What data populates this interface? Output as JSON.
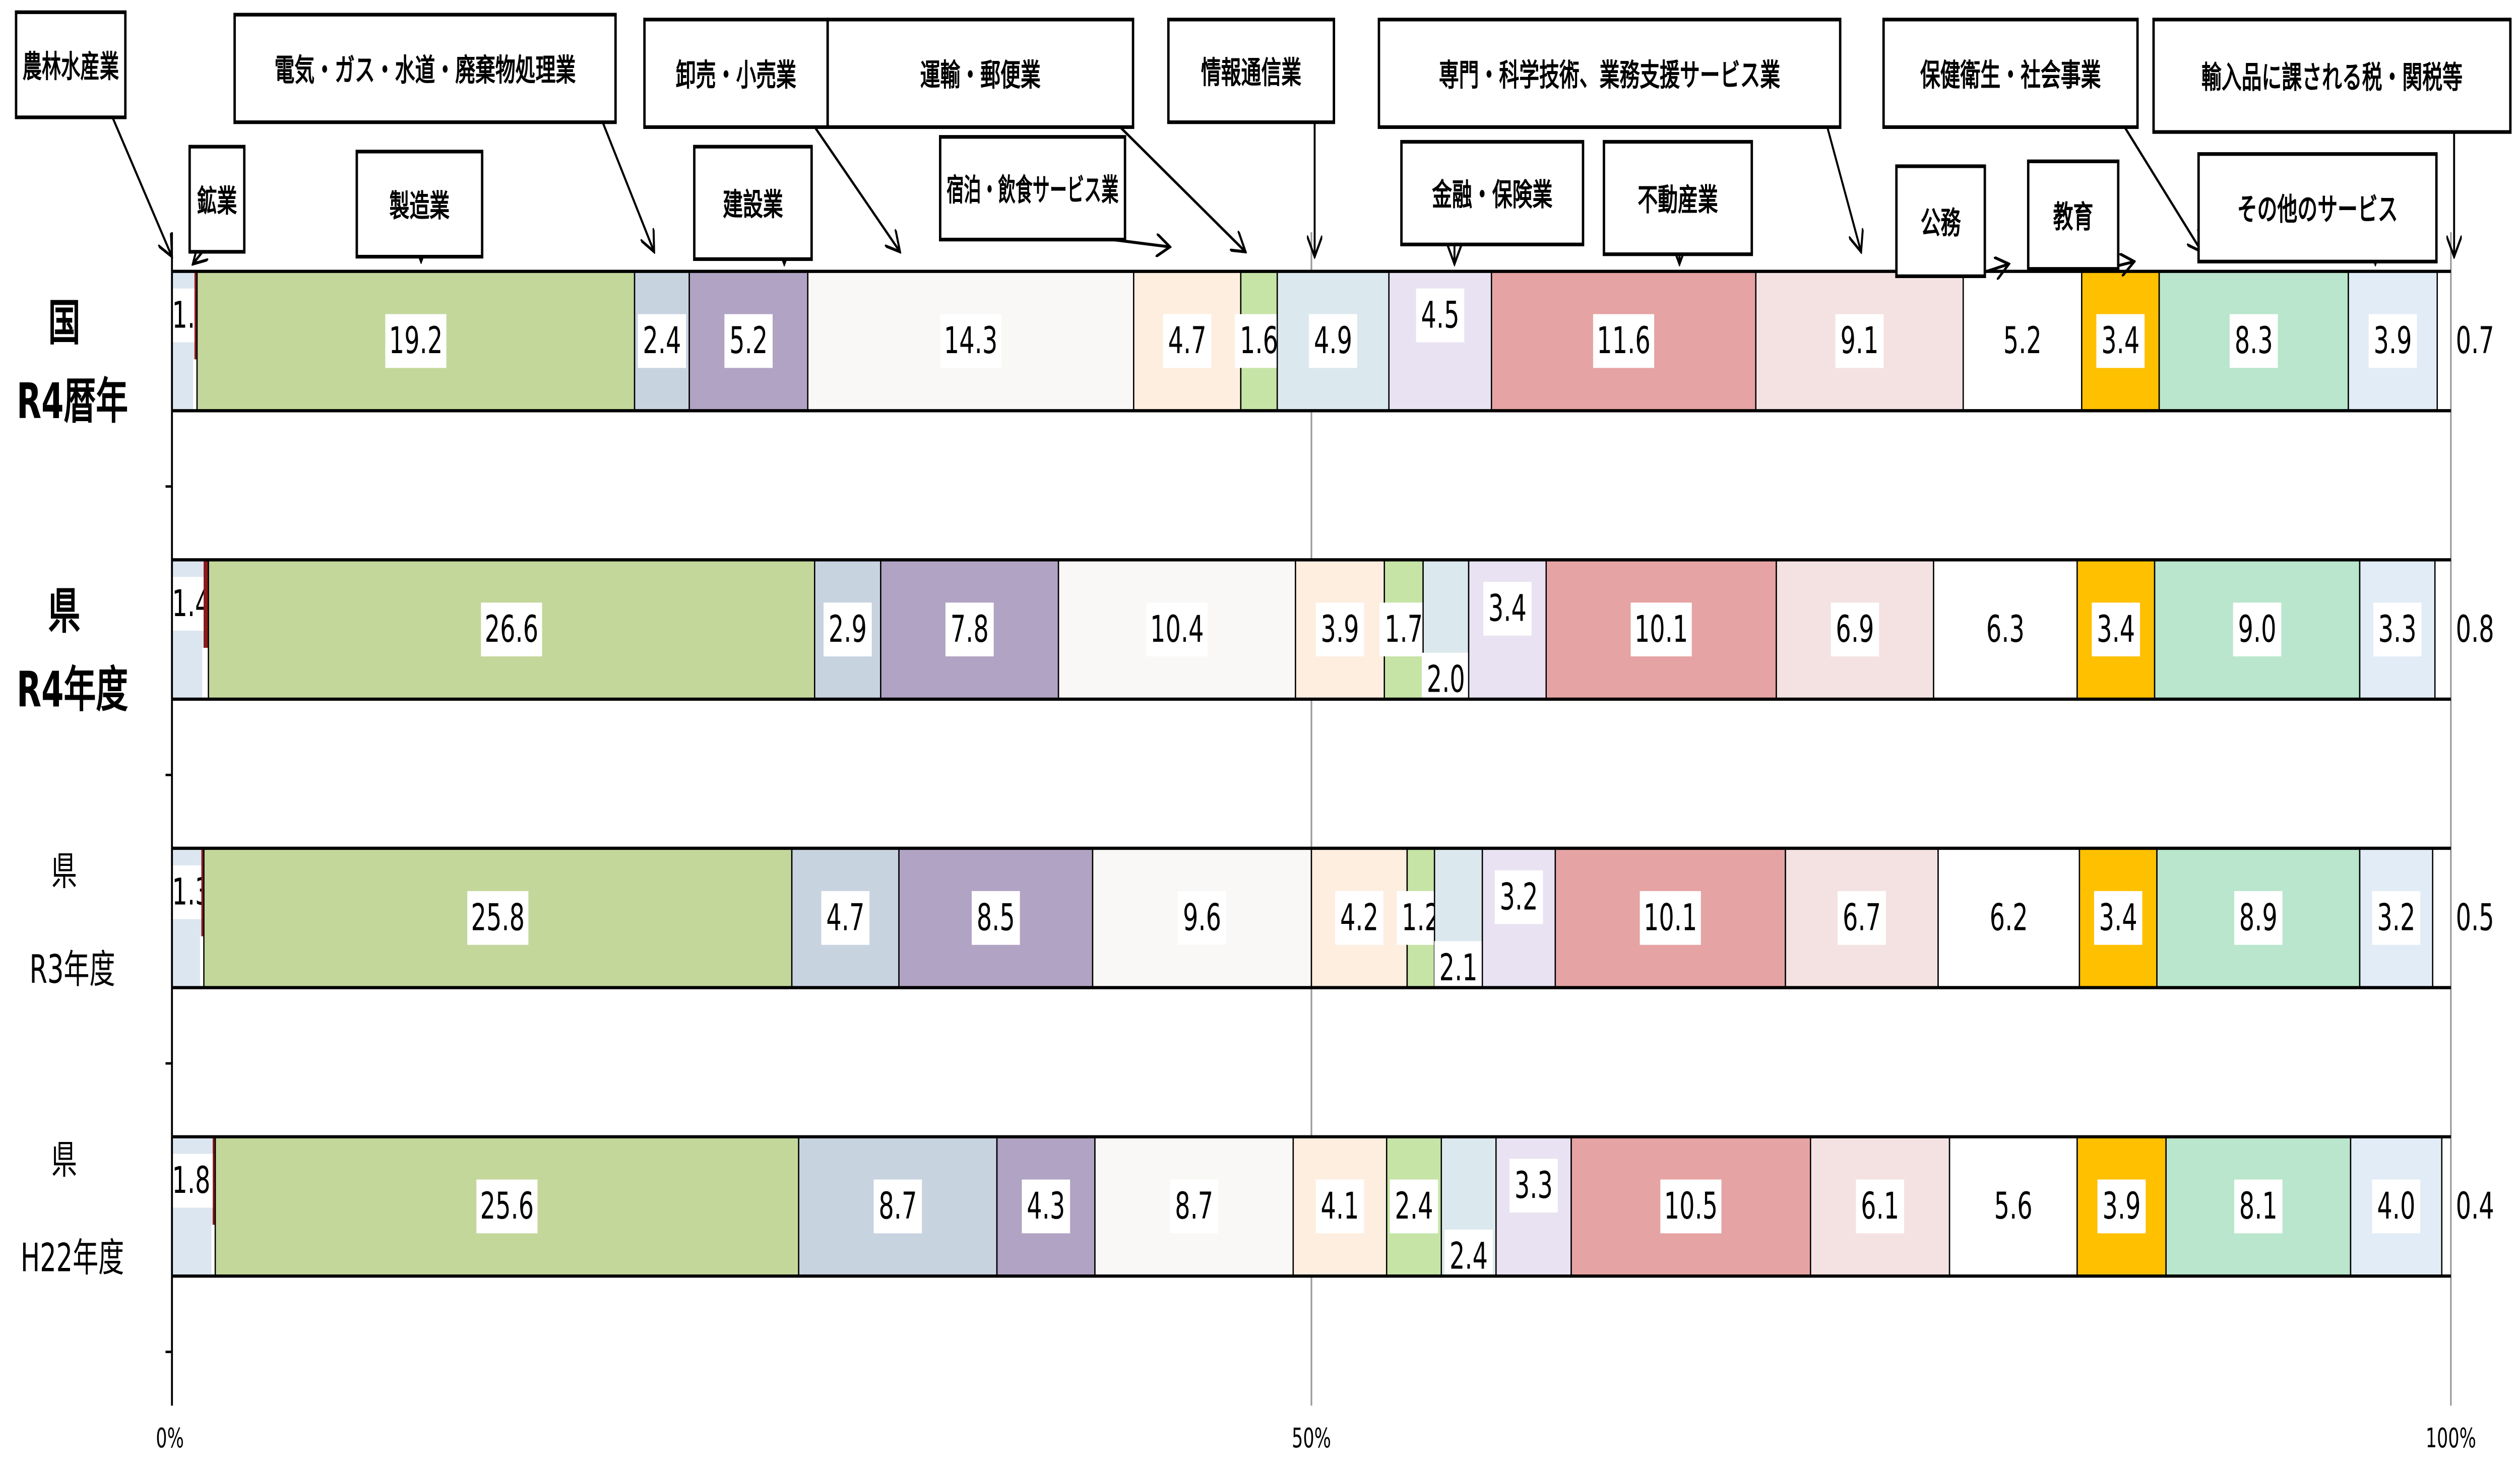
{
  "chart_data": {
    "type": "bar",
    "orientation": "horizontal",
    "stacked": "100%",
    "categories": [
      {
        "line1": "国",
        "line2": "R4暦年"
      },
      {
        "line1": "県",
        "line2": "R4年度"
      },
      {
        "line1": "県",
        "line2": "R3年度"
      },
      {
        "line1": "県",
        "line2": "H22年度"
      }
    ],
    "series": [
      {
        "name": "農林水産業",
        "color": "#dce6f0",
        "values": [
          1.0,
          1.4,
          1.3,
          1.8
        ]
      },
      {
        "name": "鉱業",
        "color": "#8b1a1a",
        "values": [
          0.1,
          0.2,
          0.1,
          0.1
        ]
      },
      {
        "name": "製造業",
        "color": "#c4d79b",
        "values": [
          19.2,
          26.6,
          25.8,
          25.6
        ]
      },
      {
        "name": "電気・ガス・水道・廃棄物処理業",
        "color": "#c8d3e0",
        "values": [
          2.4,
          2.9,
          4.7,
          8.7
        ]
      },
      {
        "name": "建設業",
        "color": "#b1a3c4",
        "values": [
          5.2,
          7.8,
          8.5,
          4.3
        ]
      },
      {
        "name": "卸売・小売業",
        "color": "#faf8f6",
        "values": [
          14.3,
          10.4,
          9.6,
          8.7
        ]
      },
      {
        "name": "運輸・郵便業",
        "color": "#fdeee0",
        "values": [
          4.7,
          3.9,
          4.2,
          4.1
        ]
      },
      {
        "name": "宿泊・飲食サービス業",
        "color": "#c6e4a6",
        "values": [
          1.6,
          1.7,
          1.2,
          2.4
        ]
      },
      {
        "name": "情報通信業",
        "color": "#dbe9ee",
        "values": [
          4.9,
          2.0,
          2.1,
          2.4
        ]
      },
      {
        "name": "金融・保険業",
        "color": "#e8e2f2",
        "values": [
          4.5,
          3.4,
          3.2,
          3.3
        ]
      },
      {
        "name": "不動産業",
        "color": "#e6a3a3",
        "values": [
          11.6,
          10.1,
          10.1,
          10.5
        ]
      },
      {
        "name": "専門・科学技術、業務支援サービス業",
        "color": "#f4e2e2",
        "values": [
          9.1,
          6.9,
          6.7,
          6.1
        ]
      },
      {
        "name": "公務",
        "color": "#ffffff",
        "values": [
          5.2,
          6.3,
          6.2,
          5.6
        ]
      },
      {
        "name": "教育",
        "color": "#ffc000",
        "values": [
          3.4,
          3.4,
          3.4,
          3.9
        ]
      },
      {
        "name": "保健衛生・社会事業",
        "color": "#b9e6cc",
        "values": [
          8.3,
          9.0,
          8.9,
          8.1
        ]
      },
      {
        "name": "その他のサービス",
        "color": "#e2ecf6",
        "values": [
          3.9,
          3.3,
          3.2,
          4.0
        ]
      },
      {
        "name": "輸入品に課される税・関税等",
        "color": "#ffffff",
        "values": [
          0.7,
          0.8,
          0.5,
          0.4
        ]
      }
    ],
    "xlim": [
      0,
      100
    ],
    "xticks": [
      "0%",
      "50%",
      "100%"
    ],
    "gridlines": "vertical at 50% and 100%",
    "legend": "callout boxes above first bar"
  }
}
